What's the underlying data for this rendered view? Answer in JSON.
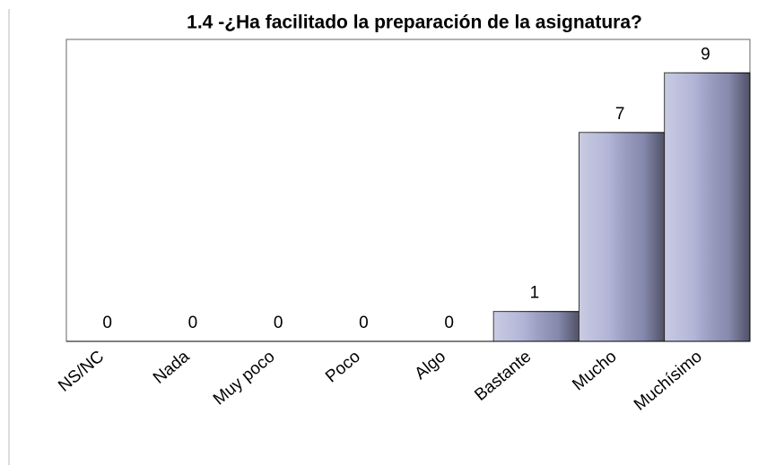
{
  "chart_data": {
    "type": "bar",
    "title": "1.4 -¿Ha facilitado la preparación de la asignatura?",
    "categories": [
      "NS/NC",
      "Nada",
      "Muy poco",
      "Poco",
      "Algo",
      "Bastante",
      "Mucho",
      "Muchísimo"
    ],
    "values": [
      0,
      0,
      0,
      0,
      0,
      1,
      7,
      9
    ],
    "color": "#9ea2cc",
    "ylim": [
      0,
      10
    ]
  }
}
